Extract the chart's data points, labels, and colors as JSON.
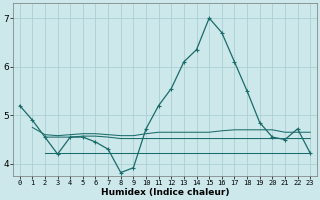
{
  "title": "",
  "xlabel": "Humidex (Indice chaleur)",
  "bg_color": "#cce8ea",
  "grid_color": "#aacfd4",
  "line_color": "#1a6b6b",
  "xlim": [
    -0.5,
    23.5
  ],
  "ylim": [
    3.75,
    7.3
  ],
  "yticks": [
    4,
    5,
    6,
    7
  ],
  "xticks": [
    0,
    1,
    2,
    3,
    4,
    5,
    6,
    7,
    8,
    9,
    10,
    11,
    12,
    13,
    14,
    15,
    16,
    17,
    18,
    19,
    20,
    21,
    22,
    23
  ],
  "line1_x": [
    0,
    1,
    2,
    3,
    4,
    5,
    6,
    7,
    8,
    9,
    10,
    11,
    12,
    13,
    14,
    15,
    16,
    17,
    18,
    19,
    20,
    21,
    22,
    23
  ],
  "line1_y": [
    5.2,
    4.9,
    4.55,
    4.2,
    4.55,
    4.55,
    4.45,
    4.3,
    3.82,
    3.92,
    4.72,
    5.2,
    5.55,
    6.1,
    6.35,
    7.0,
    6.7,
    6.1,
    5.5,
    4.85,
    4.55,
    4.5,
    4.72,
    4.22
  ],
  "line2_x": [
    1,
    2,
    3,
    4,
    5,
    6,
    7,
    8,
    9,
    10,
    11,
    12,
    13,
    14,
    15,
    16,
    17,
    18,
    19,
    20,
    21,
    22,
    23
  ],
  "line2_y": [
    4.75,
    4.6,
    4.58,
    4.6,
    4.62,
    4.62,
    4.6,
    4.58,
    4.58,
    4.62,
    4.65,
    4.65,
    4.65,
    4.65,
    4.65,
    4.68,
    4.7,
    4.7,
    4.7,
    4.7,
    4.65,
    4.65,
    4.65
  ],
  "line3_x": [
    2,
    3,
    4,
    5,
    6,
    7,
    8,
    9,
    10,
    11,
    12,
    13,
    14,
    15,
    16,
    17,
    18,
    19,
    20,
    21,
    22,
    23
  ],
  "line3_y": [
    4.55,
    4.55,
    4.55,
    4.57,
    4.57,
    4.55,
    4.52,
    4.52,
    4.52,
    4.52,
    4.52,
    4.52,
    4.52,
    4.52,
    4.52,
    4.52,
    4.52,
    4.52,
    4.52,
    4.52,
    4.52,
    4.52
  ],
  "line4_x": [
    2,
    3,
    4,
    5,
    6,
    7,
    8,
    9,
    10,
    11,
    12,
    13,
    14,
    15,
    16,
    17,
    18,
    19,
    20,
    21,
    22,
    23
  ],
  "line4_y": [
    4.22,
    4.22,
    4.22,
    4.22,
    4.22,
    4.22,
    4.22,
    4.22,
    4.22,
    4.22,
    4.22,
    4.22,
    4.22,
    4.22,
    4.22,
    4.22,
    4.22,
    4.22,
    4.22,
    4.22,
    4.22,
    4.22
  ]
}
